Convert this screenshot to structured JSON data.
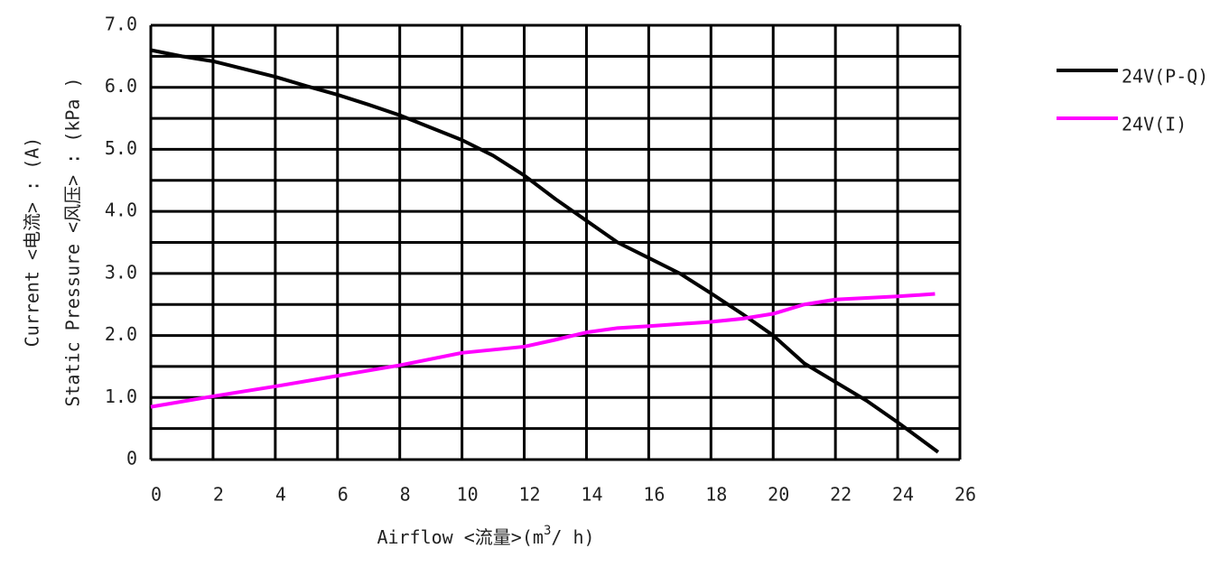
{
  "chart_data": {
    "type": "line",
    "x_label": [
      "Airflow <流量>(m",
      "3",
      "/ h)"
    ],
    "y_labels": [
      "Current  <电流> : (A)",
      "Static  Pressure  <风压> : (kPa )"
    ],
    "xlim": [
      0,
      26
    ],
    "xticks": [
      0,
      2,
      4,
      6,
      8,
      10,
      12,
      14,
      16,
      18,
      20,
      22,
      24,
      26
    ],
    "ylim": [
      0,
      7
    ],
    "yticks": [
      0,
      {
        "value": 1,
        "label": "1.0"
      },
      {
        "value": 2,
        "label": "2.0"
      },
      {
        "value": 3,
        "label": "3.0"
      },
      {
        "value": 4,
        "label": "4.0"
      },
      {
        "value": 5,
        "label": "5.0"
      },
      {
        "value": 6,
        "label": "6.0"
      },
      {
        "value": 7,
        "label": "7.0"
      }
    ],
    "minor_yticks": [
      0.5,
      1.5,
      2.5,
      3.5,
      4.5,
      5.5,
      6.5
    ],
    "grid": true,
    "legend": "right",
    "series": [
      {
        "name": "24V(P-Q)",
        "color": "#000000",
        "x": [
          0,
          1,
          2,
          4,
          5,
          6,
          7,
          8,
          10,
          11,
          12,
          13,
          14,
          15,
          16,
          17,
          18,
          19,
          20,
          21,
          22,
          23,
          24,
          25.3
        ],
        "values": [
          6.6,
          6.5,
          6.42,
          6.17,
          6.02,
          5.88,
          5.72,
          5.55,
          5.15,
          4.9,
          4.58,
          4.2,
          3.85,
          3.5,
          3.25,
          3.0,
          2.68,
          2.35,
          2.0,
          1.55,
          1.25,
          0.95,
          0.6,
          0.12
        ]
      },
      {
        "name": "24V(I)",
        "color": "#ff00ff",
        "x": [
          0,
          2,
          4,
          6,
          8,
          9,
          10,
          12,
          13,
          14,
          15,
          16,
          18,
          19,
          20,
          21,
          22,
          24,
          25.2
        ],
        "values": [
          0.85,
          1.02,
          1.18,
          1.35,
          1.52,
          1.62,
          1.72,
          1.82,
          1.93,
          2.05,
          2.12,
          2.15,
          2.22,
          2.27,
          2.35,
          2.5,
          2.58,
          2.63,
          2.67
        ]
      }
    ]
  }
}
